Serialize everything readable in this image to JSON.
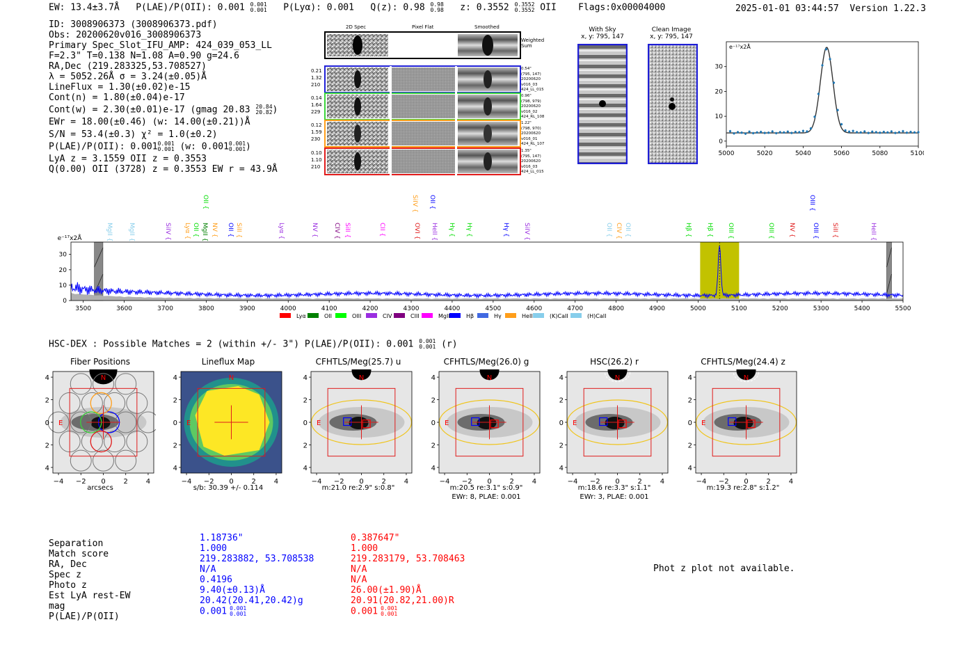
{
  "header": {
    "ew": "EW: 13.4±3.7Å",
    "plae": "P(LAE)/P(OII): 0.001",
    "plae_hi": "0.001",
    "plae_lo": "0.001",
    "plya": "P(Lyα): 0.001",
    "qz": "Q(z): 0.98",
    "qz_hi": "0.98",
    "qz_lo": "0.98",
    "z": "z: 0.3552",
    "z_hi": "0.3552",
    "z_lo": "0.3552",
    "z_line": "OII",
    "flags": "Flags:0x00004000",
    "timestamp": "2025-01-01 03:44:57",
    "version": "Version 1.22.3"
  },
  "info": {
    "id": "ID: 3008906373 (3008906373.pdf)",
    "obs": "Obs: 20200620v016_3008906373",
    "primary": "Primary Spec_Slot_IFU_AMP: 424_039_053_LL",
    "fwhm": "F=2.3\"  T=0.138  N=1.08  A=0.90  g=24.6",
    "radec": "RA,Dec (219.283325,53.708527)",
    "lambda": "λ = 5052.26Å  σ = 3.24(±0.05)Å",
    "lineflux": "LineFlux = 1.30(±0.02)e-15",
    "contn": "Cont(n) = 1.80(±0.04)e-17",
    "contw": "Cont(w) = 2.30(±0.01)e-17 (gmag 20.83",
    "contw_hi": "20.84",
    "contw_lo": "20.82",
    "ewr": "EWr = 18.00(±0.46) (w: 14.00(±0.21))Å",
    "sn": "S/N = 53.4(±0.3)  χ² = 1.0(±0.2)",
    "plae": "P(LAE)/P(OII): 0.001",
    "plae_w": "(w: 0.001",
    "frac": "0.001",
    "lyaz": "LyA z = 3.1559  OII z = 0.3553",
    "q": "Q(0.00) OII (3728) z = 0.3553  EW r = 43.9Å"
  },
  "cutouts": {
    "col_2d": "2D Spec",
    "col_flat": "Pixel Flat",
    "col_smooth": "Smoothed",
    "weighted": "Weighted Sum",
    "rows": [
      {
        "n1": "0.21",
        "n2": "1.32",
        "n3": "210",
        "d": "0.54\"",
        "xy": "(795, 147)",
        "date": "20200620",
        "v": "v016_03",
        "amp": "424_LL_015",
        "color": "#1f1fd6"
      },
      {
        "n1": "0.14",
        "n2": "1.64",
        "n3": "229",
        "d": "0.96\"",
        "xy": "(798, 979)",
        "date": "20200620",
        "v": "v016_02",
        "amp": "424_RL_108",
        "color": "#3bd43b"
      },
      {
        "n1": "0.12",
        "n2": "1.59",
        "n3": "230",
        "d": "1.22\"",
        "xy": "(798, 970)",
        "date": "20200620",
        "v": "v016_01",
        "amp": "424_RL_107",
        "color": "#ff9e1a"
      },
      {
        "n1": "0.10",
        "n2": "1.10",
        "n3": "210",
        "d": "1.35\"",
        "xy": "(795, 147)",
        "date": "20200620",
        "v": "v016_03",
        "amp": "424_LL_015",
        "color": "#e01b1b"
      }
    ]
  },
  "sky": {
    "with_sky": "With Sky",
    "with_sky_xy": "x, y: 795, 147",
    "clean": "Clean Image",
    "clean_xy": "x, y: 795, 147"
  },
  "zoom_chart": {
    "type": "scatter",
    "unit_label": "e⁻¹⁷x2Å",
    "xlim": [
      5000,
      5100
    ],
    "ylim": [
      -2,
      40
    ],
    "xticks": [
      5000,
      5020,
      5040,
      5060,
      5080,
      5100
    ],
    "yticks": [
      0,
      10,
      20,
      30
    ],
    "gauss": {
      "mu": 5052.26,
      "sigma": 3.24,
      "amp": 34.5,
      "base": 3.3
    },
    "x": [
      5002,
      5004,
      5006,
      5008,
      5010,
      5012,
      5014,
      5016,
      5018,
      5020,
      5022,
      5024,
      5026,
      5028,
      5030,
      5032,
      5034,
      5036,
      5038,
      5040,
      5042,
      5044,
      5046,
      5048,
      5050,
      5052,
      5054,
      5056,
      5058,
      5060,
      5062,
      5064,
      5066,
      5068,
      5070,
      5072,
      5074,
      5076,
      5078,
      5080,
      5082,
      5084,
      5086,
      5088,
      5090,
      5092,
      5094,
      5096,
      5098,
      5100
    ],
    "y": [
      4.0,
      3.1,
      3.6,
      3.4,
      3.0,
      3.8,
      3.2,
      3.5,
      3.7,
      3.3,
      3.4,
      3.9,
      3.2,
      3.6,
      3.5,
      3.8,
      3.3,
      3.7,
      3.6,
      4.1,
      3.9,
      5.1,
      9.8,
      19.0,
      30.5,
      37.0,
      33.0,
      23.5,
      12.5,
      6.8,
      4.3,
      3.8,
      4.1,
      3.6,
      3.5,
      3.9,
      3.3,
      3.8,
      3.6,
      3.4,
      3.7,
      3.5,
      3.9,
      3.3,
      3.6,
      4.0,
      3.4,
      3.7,
      3.5,
      3.6
    ]
  },
  "chart_data": {
    "type": "line",
    "unit_label": "e⁻¹⁷x2Å",
    "xlim": [
      3470,
      5500
    ],
    "ylim": [
      0,
      38
    ],
    "xticks": [
      3500,
      3600,
      3700,
      3800,
      3900,
      4000,
      4100,
      4200,
      4300,
      4400,
      4500,
      4600,
      4700,
      4800,
      4900,
      5000,
      5100,
      5200,
      5300,
      5400,
      5500
    ],
    "yticks": [
      0,
      10,
      20,
      30
    ],
    "highlight_range": [
      5005,
      5100
    ],
    "masked_ranges": [
      [
        3527,
        3548
      ],
      [
        5460,
        5472
      ]
    ],
    "peak": {
      "mu": 5052.26,
      "sigma": 3.24,
      "amp": 33
    },
    "line_ids": [
      {
        "label": "MgII",
        "wave": 3565,
        "color": "#87ceeb",
        "row": 1
      },
      {
        "label": "MgII",
        "wave": 3620,
        "color": "#87ceeb",
        "row": 1
      },
      {
        "label": "SiIV",
        "wave": 3708,
        "color": "#9a2ee0",
        "row": 1
      },
      {
        "label": "Lyα",
        "wave": 3755,
        "color": "#ff9e1a",
        "row": 1
      },
      {
        "label": "OII",
        "wave": 3775,
        "color": "#00dd00",
        "row": 1
      },
      {
        "label": "MgII",
        "wave": 3797,
        "color": "#008000",
        "row": 1
      },
      {
        "label": "OII",
        "wave": 3800,
        "color": "#00dd00",
        "row": 0
      },
      {
        "label": "NV",
        "wave": 3822,
        "color": "#ff9e1a",
        "row": 1
      },
      {
        "label": "OII",
        "wave": 3860,
        "color": "#0000ff",
        "row": 1
      },
      {
        "label": "SiII",
        "wave": 3880,
        "color": "#ff9e1a",
        "row": 1
      },
      {
        "label": "Lyα",
        "wave": 3985,
        "color": "#9a2ee0",
        "row": 1
      },
      {
        "label": "NV",
        "wave": 4065,
        "color": "#9a2ee0",
        "row": 1
      },
      {
        "label": "CIV",
        "wave": 4120,
        "color": "#800080",
        "row": 1
      },
      {
        "label": "SiII",
        "wave": 4145,
        "color": "#ff00ff",
        "row": 1
      },
      {
        "label": "CII",
        "wave": 4230,
        "color": "#ff00ff",
        "row": 1
      },
      {
        "label": "SiIV",
        "wave": 4310,
        "color": "#ff9e1a",
        "row": 0
      },
      {
        "label": "OVI",
        "wave": 4315,
        "color": "#e01b1b",
        "row": 1
      },
      {
        "label": "OII",
        "wave": 4352,
        "color": "#0000ff",
        "row": 0
      },
      {
        "label": "HeII",
        "wave": 4358,
        "color": "#9a2ee0",
        "row": 1
      },
      {
        "label": "Hγ",
        "wave": 4400,
        "color": "#00dd00",
        "row": 1
      },
      {
        "label": "Hγ",
        "wave": 4443,
        "color": "#00dd00",
        "row": 1
      },
      {
        "label": "Hγ",
        "wave": 4533,
        "color": "#0000ff",
        "row": 1
      },
      {
        "label": "SiIV",
        "wave": 4583,
        "color": "#9a2ee0",
        "row": 1
      },
      {
        "label": "OII",
        "wave": 4784,
        "color": "#87ceeb",
        "row": 1
      },
      {
        "label": "CIV",
        "wave": 4808,
        "color": "#ff9e1a",
        "row": 1
      },
      {
        "label": "OII",
        "wave": 4830,
        "color": "#87ceeb",
        "row": 1
      },
      {
        "label": "Hβ",
        "wave": 4977,
        "color": "#00dd00",
        "row": 1
      },
      {
        "label": "Hβ",
        "wave": 5030,
        "color": "#00dd00",
        "row": 1
      },
      {
        "label": "OIII",
        "wave": 5080,
        "color": "#00dd00",
        "row": 1
      },
      {
        "label": "OIII",
        "wave": 5180,
        "color": "#00dd00",
        "row": 1
      },
      {
        "label": "NV",
        "wave": 5230,
        "color": "#e01b1b",
        "row": 1
      },
      {
        "label": "OIII",
        "wave": 5280,
        "color": "#0000ff",
        "row": 0
      },
      {
        "label": "OIII",
        "wave": 5288,
        "color": "#0000ff",
        "row": 1
      },
      {
        "label": "SiII",
        "wave": 5335,
        "color": "#e01b1b",
        "row": 1
      },
      {
        "label": "HeII",
        "wave": 5428,
        "color": "#9a2ee0",
        "row": 1
      }
    ],
    "legend": [
      {
        "label": "Lyα",
        "color": "#ff0000"
      },
      {
        "label": "OII",
        "color": "#008000"
      },
      {
        "label": "OIII",
        "color": "#00ff00"
      },
      {
        "label": "CIV",
        "color": "#9a2ee0"
      },
      {
        "label": "CIII",
        "color": "#800080"
      },
      {
        "label": "MgII",
        "color": "#ff00ff"
      },
      {
        "label": "Hβ",
        "color": "#0000ff"
      },
      {
        "label": "Hγ",
        "color": "#4169e1"
      },
      {
        "label": "HeII",
        "color": "#ff9e1a"
      },
      {
        "label": "(K)CaII",
        "color": "#87ceeb"
      },
      {
        "label": "(H)CaII",
        "color": "#87ceeb"
      }
    ]
  },
  "hsc": {
    "title": "HSC-DEX : Possible Matches = 2 (within +/- 3\")  P(LAE)/P(OII): 0.001",
    "frac": "0.001",
    "band": "(r)"
  },
  "stamps": [
    {
      "title": "Fiber Positions",
      "cap1": "arcsecs",
      "cap2": ""
    },
    {
      "title": "Lineflux Map",
      "cap1": "s/b: 30.39 +/- 0.114",
      "cap2": ""
    },
    {
      "title": "CFHTLS/Meg(25.7) u",
      "cap1": "m:21.0  re:2.9\"  s:0.8\"",
      "cap2": ""
    },
    {
      "title": "CFHTLS/Meg(26.0) g",
      "cap1": "m:20.5  re:3.1\"  s:0.9\"",
      "cap2": "EWr: 8, PLAE: 0.001"
    },
    {
      "title": "HSC(26.2) r",
      "cap1": "m:18.6  re:3.3\"  s:1.1\"",
      "cap2": "EWr: 3, PLAE: 0.001"
    },
    {
      "title": "CFHTLS/Meg(24.4) z",
      "cap1": "m:19.3  re:2.8\"  s:1.2\"",
      "cap2": ""
    }
  ],
  "stamp_axes": {
    "ticks": [
      "4",
      "2",
      "0",
      "−2",
      "−4"
    ],
    "xticks": [
      "−4",
      "−2",
      "0",
      "2",
      "4"
    ],
    "north": "N",
    "east": "E"
  },
  "matches": {
    "labels": [
      "Separation",
      "Match score",
      "RA, Dec",
      "Spec z",
      "Photo z",
      "Est LyA rest-EW",
      "mag",
      "P(LAE)/P(OII)"
    ],
    "blue": [
      "1.18736\"",
      "1.000",
      "219.283882, 53.708538",
      "N/A",
      "0.4196",
      "9.40(±0.13)Å",
      "20.42(20.41,20.42)g",
      "0.001"
    ],
    "red": [
      "0.387647\"",
      "1.000",
      "219.283179, 53.708463",
      "N/A",
      "N/A",
      "26.00(±1.90)Å",
      "20.91(20.82,21.00)R",
      "0.001"
    ],
    "frac": "0.001",
    "photz_msg": "Phot z plot not available."
  }
}
